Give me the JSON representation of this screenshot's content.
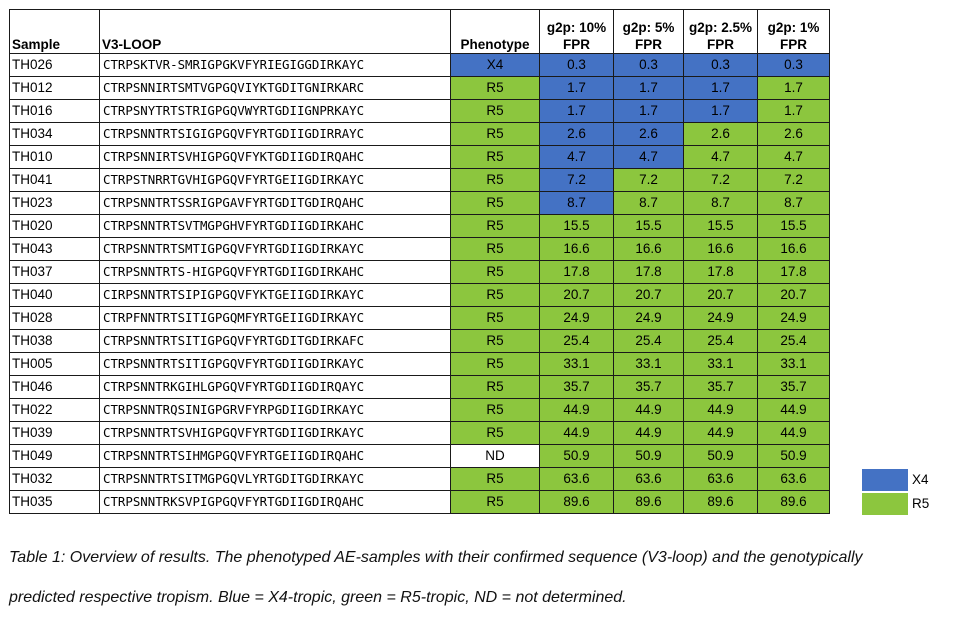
{
  "table": {
    "headers": [
      "Sample",
      "V3-LOOP",
      "Phenotype",
      "g2p: 10%\nFPR",
      "g2p: 5%\nFPR",
      "g2p: 2.5%\nFPR",
      "g2p: 1%\nFPR"
    ],
    "rows": [
      {
        "sample": "TH026",
        "seq": "CTRPSKTVR-SMRIGPGKVFYRIEGIGGDIRKAYC",
        "pheno": "X4",
        "vals": [
          "0.3",
          "0.3",
          "0.3",
          "0.3"
        ],
        "colors": [
          "blue",
          "blue",
          "blue",
          "blue",
          "blue"
        ]
      },
      {
        "sample": "TH012",
        "seq": "CTRPSNNIRTSMTVGPGQVIYKTGDITGNIRKARC",
        "pheno": "R5",
        "vals": [
          "1.7",
          "1.7",
          "1.7",
          "1.7"
        ],
        "colors": [
          "green",
          "blue",
          "blue",
          "blue",
          "green"
        ]
      },
      {
        "sample": "TH016",
        "seq": "CTRPSNYTRTSTRIGPGQVWYRTGDIIGNPRKAYC",
        "pheno": "R5",
        "vals": [
          "1.7",
          "1.7",
          "1.7",
          "1.7"
        ],
        "colors": [
          "green",
          "blue",
          "blue",
          "blue",
          "green"
        ]
      },
      {
        "sample": "TH034",
        "seq": "CTRPSNNTRTSIGIGPGQVFYRTGDIIGDIRRAYC",
        "pheno": "R5",
        "vals": [
          "2.6",
          "2.6",
          "2.6",
          "2.6"
        ],
        "colors": [
          "green",
          "blue",
          "blue",
          "green",
          "green"
        ]
      },
      {
        "sample": "TH010",
        "seq": "CTRPSNNIRTSVHIGPGQVFYKTGDIIGDIRQAHC",
        "pheno": "R5",
        "vals": [
          "4.7",
          "4.7",
          "4.7",
          "4.7"
        ],
        "colors": [
          "green",
          "blue",
          "blue",
          "green",
          "green"
        ]
      },
      {
        "sample": "TH041",
        "seq": "CTRPSTNRRTGVHIGPGQVFYRTGEIIGDIRKAYC",
        "pheno": "R5",
        "vals": [
          "7.2",
          "7.2",
          "7.2",
          "7.2"
        ],
        "colors": [
          "green",
          "blue",
          "green",
          "green",
          "green"
        ]
      },
      {
        "sample": "TH023",
        "seq": "CTRPSNNTRTSSRIGPGAVFYRTGDITGDIRQAHC",
        "pheno": "R5",
        "vals": [
          "8.7",
          "8.7",
          "8.7",
          "8.7"
        ],
        "colors": [
          "green",
          "blue",
          "green",
          "green",
          "green"
        ]
      },
      {
        "sample": "TH020",
        "seq": "CTRPSNNTRTSVTMGPGHVFYRTGDIIGDIRKAHC",
        "pheno": "R5",
        "vals": [
          "15.5",
          "15.5",
          "15.5",
          "15.5"
        ],
        "colors": [
          "green",
          "green",
          "green",
          "green",
          "green"
        ]
      },
      {
        "sample": "TH043",
        "seq": "CTRPSNNTRTSMTIGPGQVFYRTGDIIGDIRKAYC",
        "pheno": "R5",
        "vals": [
          "16.6",
          "16.6",
          "16.6",
          "16.6"
        ],
        "colors": [
          "green",
          "green",
          "green",
          "green",
          "green"
        ]
      },
      {
        "sample": "TH037",
        "seq": "CTRPSNNTRTS-HIGPGQVFYRTGDIIGDIRKAHC",
        "pheno": "R5",
        "vals": [
          "17.8",
          "17.8",
          "17.8",
          "17.8"
        ],
        "colors": [
          "green",
          "green",
          "green",
          "green",
          "green"
        ]
      },
      {
        "sample": "TH040",
        "seq": "CIRPSNNTRTSIPIGPGQVFYKTGEIIGDIRKAYC",
        "pheno": "R5",
        "vals": [
          "20.7",
          "20.7",
          "20.7",
          "20.7"
        ],
        "colors": [
          "green",
          "green",
          "green",
          "green",
          "green"
        ]
      },
      {
        "sample": "TH028",
        "seq": "CTRPFNNTRTSITIGPGQMFYRTGEIIGDIRKAYC",
        "pheno": "R5",
        "vals": [
          "24.9",
          "24.9",
          "24.9",
          "24.9"
        ],
        "colors": [
          "green",
          "green",
          "green",
          "green",
          "green"
        ]
      },
      {
        "sample": "TH038",
        "seq": "CTRPSNNTRTSITIGPGQVFYRTGDITGDIRKAFC",
        "pheno": "R5",
        "vals": [
          "25.4",
          "25.4",
          "25.4",
          "25.4"
        ],
        "colors": [
          "green",
          "green",
          "green",
          "green",
          "green"
        ]
      },
      {
        "sample": "TH005",
        "seq": "CTRPSNNTRTSITIGPGQVFYRTGDIIGDIRKAYC",
        "pheno": "R5",
        "vals": [
          "33.1",
          "33.1",
          "33.1",
          "33.1"
        ],
        "colors": [
          "green",
          "green",
          "green",
          "green",
          "green"
        ]
      },
      {
        "sample": "TH046",
        "seq": "CTRPSNNTRKGIHLGPGQVFYRTGDIIGDIRQAYC",
        "pheno": "R5",
        "vals": [
          "35.7",
          "35.7",
          "35.7",
          "35.7"
        ],
        "colors": [
          "green",
          "green",
          "green",
          "green",
          "green"
        ]
      },
      {
        "sample": "TH022",
        "seq": "CTRPSNNTRQSINIGPGRVFYRPGDIIGDIRKAYC",
        "pheno": "R5",
        "vals": [
          "44.9",
          "44.9",
          "44.9",
          "44.9"
        ],
        "colors": [
          "green",
          "green",
          "green",
          "green",
          "green"
        ]
      },
      {
        "sample": "TH039",
        "seq": "CTRPSNNTRTSVHIGPGQVFYRTGDIIGDIRKAYC",
        "pheno": "R5",
        "vals": [
          "44.9",
          "44.9",
          "44.9",
          "44.9"
        ],
        "colors": [
          "green",
          "green",
          "green",
          "green",
          "green"
        ]
      },
      {
        "sample": "TH049",
        "seq": "CTRPSNNTRTSIHMGPGQVFYRTGEIIGDIRQAHC",
        "pheno": "ND",
        "vals": [
          "50.9",
          "50.9",
          "50.9",
          "50.9"
        ],
        "colors": [
          "white",
          "green",
          "green",
          "green",
          "green"
        ]
      },
      {
        "sample": "TH032",
        "seq": "CTRPSNNTRTSITMGPGQVLYRTGDITGDIRKAYC",
        "pheno": "R5",
        "vals": [
          "63.6",
          "63.6",
          "63.6",
          "63.6"
        ],
        "colors": [
          "green",
          "green",
          "green",
          "green",
          "green"
        ]
      },
      {
        "sample": "TH035",
        "seq": "CTRPSNNTRKSVPIGPGQVFYRTGDIIGDIRQAHC",
        "pheno": "R5",
        "vals": [
          "89.6",
          "89.6",
          "89.6",
          "89.6"
        ],
        "colors": [
          "green",
          "green",
          "green",
          "green",
          "green"
        ]
      }
    ]
  },
  "legend": [
    {
      "label": "X4",
      "color": "#4472c4"
    },
    {
      "label": "R5",
      "color": "#8cc63e"
    }
  ],
  "caption": {
    "line1": "Table 1: Overview of results. The phenotyped AE-samples with their confirmed sequence (V3-loop) and the genotypically",
    "line2": "predicted respective tropism. Blue = X4-tropic, green = R5-tropic, ND = not determined."
  }
}
